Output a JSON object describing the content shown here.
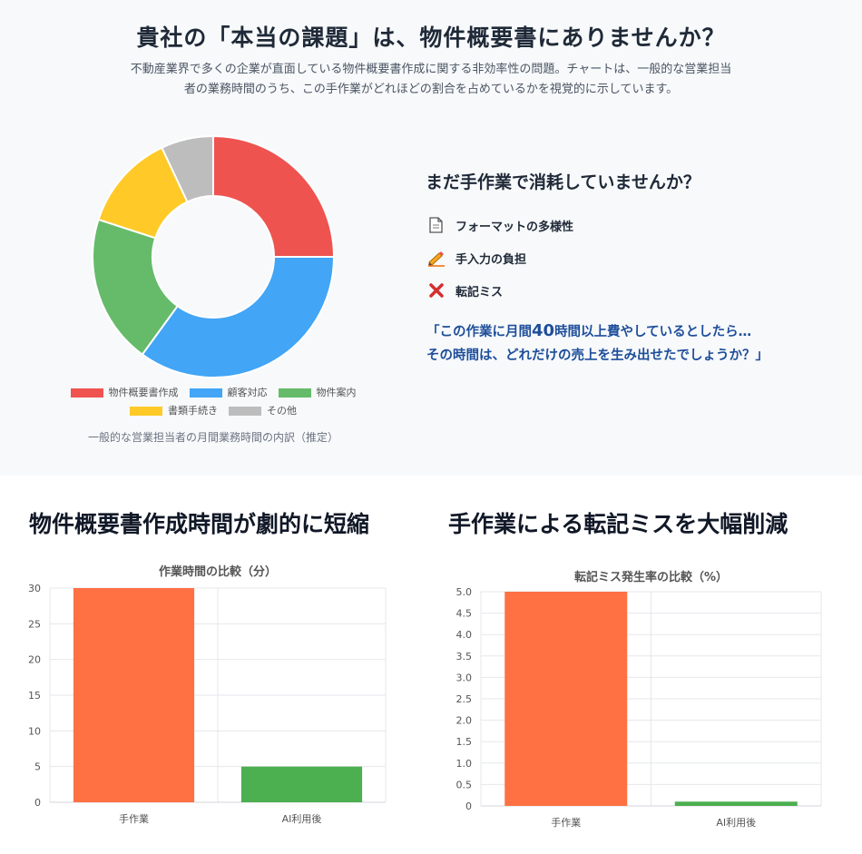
{
  "header": {
    "title": "貴社の「本当の課題」は、物件概要書にありませんか？",
    "description": "不動産業界で多くの企業が直面している物件概要書作成に関する非効率性の問題。チャートは、一般的な営業担当者の業務時間のうち、この手作業がどれほどの割合を占めているかを視覚的に示しています。"
  },
  "side": {
    "title": "まだ手作業で消耗していませんか？",
    "items": [
      {
        "icon": "document-icon",
        "label": "フォーマットの多様性"
      },
      {
        "icon": "pencil-icon",
        "label": "手入力の負担"
      },
      {
        "icon": "cross-icon",
        "label": "転記ミス"
      }
    ],
    "quote_line1_pre": "「この作業に月間",
    "quote_number": "40",
    "quote_line1_post": "時間以上費やしているとしたら…",
    "quote_line2": "その時間は、どれだけの売上を生み出せたでしょうか？」",
    "accent": "#1e4e9a"
  },
  "sections": {
    "left_title": "物件概要書作成時間が劇的に短縮",
    "right_title": "手作業による転記ミスを大幅削減"
  },
  "chart_data": [
    {
      "type": "pie",
      "donut": true,
      "caption": "一般的な営業担当者の月間業務時間の内訳（推定）",
      "labels": [
        "物件概要書作成",
        "顧客対応",
        "物件案内",
        "書類手続き",
        "その他"
      ],
      "values": [
        25,
        35,
        20,
        13,
        7
      ],
      "colors": [
        "#ef5350",
        "#42a5f5",
        "#66bb6a",
        "#ffca28",
        "#bdbdbd"
      ],
      "legend_position": "bottom"
    },
    {
      "type": "bar",
      "title": "作業時間の比較（分）",
      "categories": [
        "手作業",
        "AI利用後"
      ],
      "values": [
        30,
        5
      ],
      "colors": [
        "#ff7043",
        "#4caf50"
      ],
      "ylim": [
        0,
        30
      ],
      "yticks": [
        "0",
        "5",
        "10",
        "15",
        "20",
        "25",
        "30"
      ],
      "grid": true
    },
    {
      "type": "bar",
      "title": "転記ミス発生率の比較（%）",
      "categories": [
        "手作業",
        "AI利用後"
      ],
      "values": [
        5.0,
        0.1
      ],
      "colors": [
        "#ff7043",
        "#4caf50"
      ],
      "ylim": [
        0,
        5
      ],
      "yticks": [
        "0",
        "0.5",
        "1.0",
        "1.5",
        "2.0",
        "2.5",
        "3.0",
        "3.5",
        "4.0",
        "4.5",
        "5.0"
      ],
      "grid": true
    }
  ]
}
